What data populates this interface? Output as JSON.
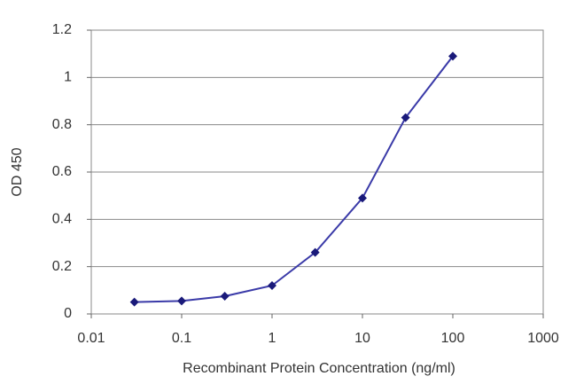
{
  "chart_data": {
    "type": "line",
    "x_label": "Recombinant Protein Concentration (ng/ml)",
    "y_label": "OD 450",
    "x_scale": "log",
    "grid": true,
    "series": [
      {
        "color": "#3a3aa8",
        "marker_color": "#1a1a7a",
        "x": [
          0.03,
          0.1,
          0.3,
          1,
          3,
          10,
          30,
          100
        ],
        "values": [
          0.05,
          0.055,
          0.075,
          0.12,
          0.26,
          0.49,
          0.83,
          1.09
        ]
      }
    ],
    "xlim": [
      0.01,
      1000
    ],
    "xticks": [
      0.01,
      0.1,
      1,
      10,
      100,
      1000
    ],
    "ylim": [
      0,
      1.2
    ],
    "yticks": [
      0,
      0.2,
      0.4,
      0.6,
      0.8,
      1,
      1.2
    ]
  }
}
